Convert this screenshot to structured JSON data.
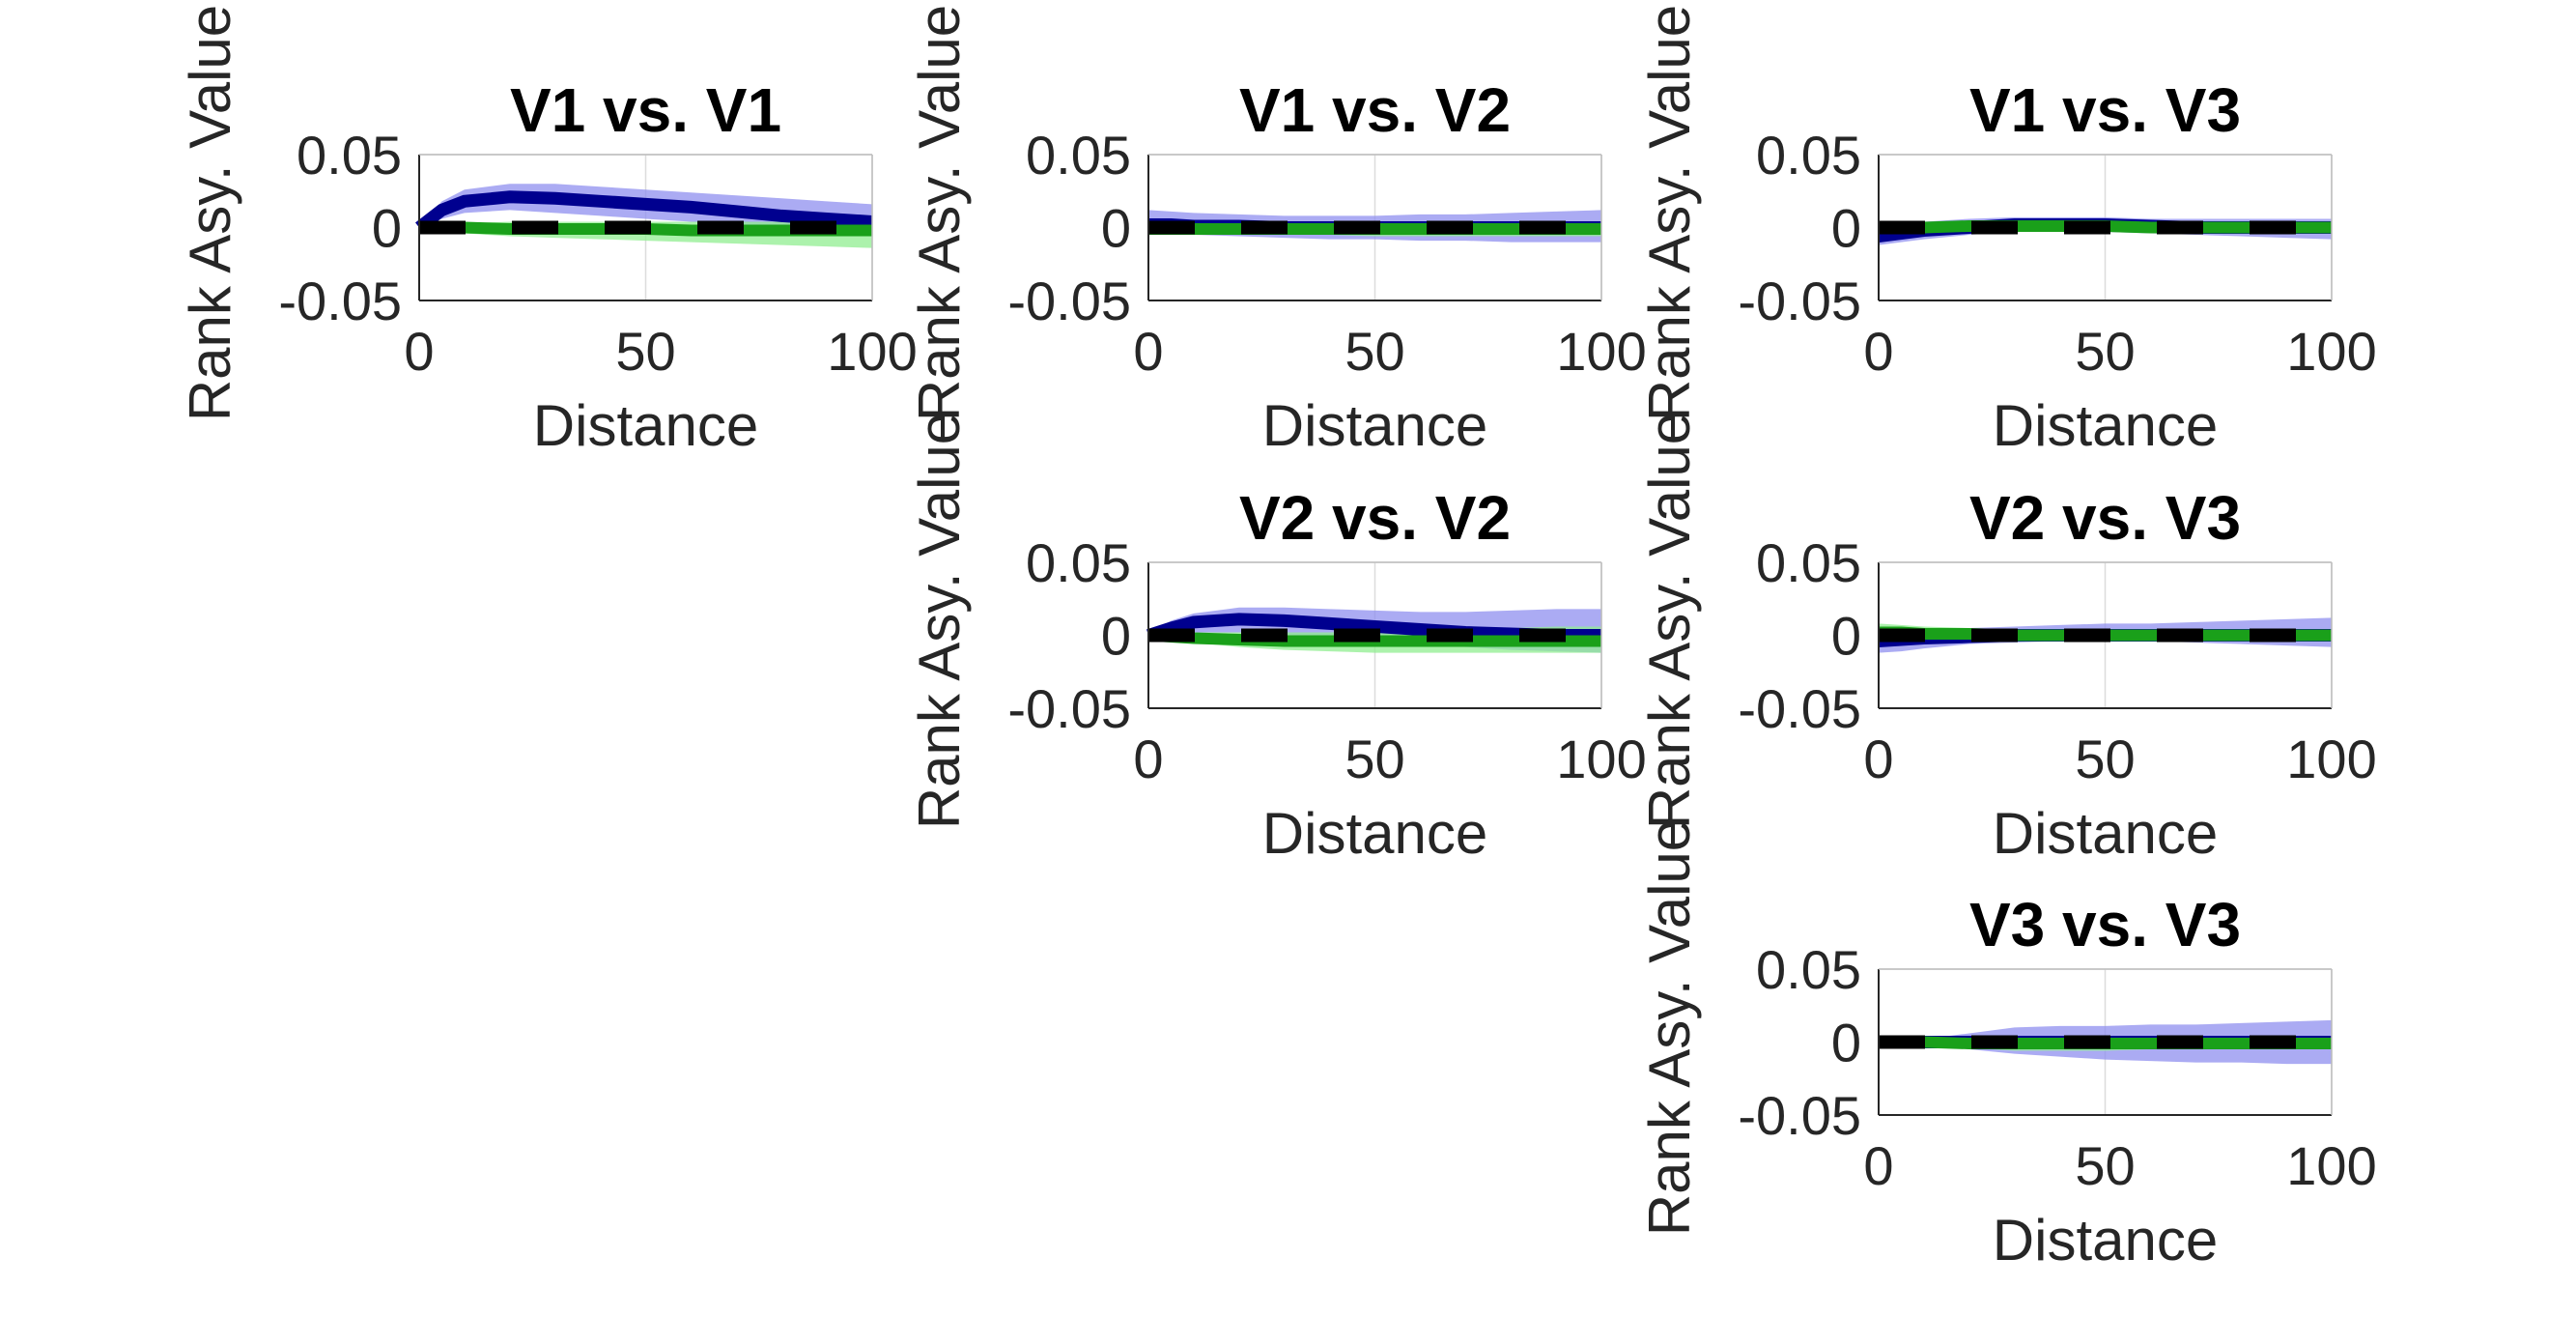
{
  "colors": {
    "blue_line": "#00008f",
    "blue_band": "#8f8fef",
    "green_line": "#1aa01a",
    "green_band": "#90ee90",
    "overlap_band": "#5f8fb7",
    "dashed": "#000000",
    "axes": "#262626",
    "grid": "#dcdcdc"
  },
  "chart_data": [
    {
      "type": "line",
      "title": "V1 vs. V1",
      "xlabel": "Distance",
      "ylabel": "Rank Asy. Value",
      "xlim": [
        0,
        100
      ],
      "ylim": [
        -0.05,
        0.05
      ],
      "xticks": [
        "0",
        "50",
        "100"
      ],
      "yticks": [
        "0.05",
        "0",
        "-0.05"
      ],
      "grid": true,
      "x": [
        0,
        5,
        10,
        20,
        30,
        40,
        50,
        60,
        70,
        80,
        90,
        100
      ],
      "series": [
        {
          "color": "blue",
          "values": [
            0.0,
            0.012,
            0.018,
            0.021,
            0.02,
            0.018,
            0.016,
            0.014,
            0.011,
            0.008,
            0.006,
            0.004
          ],
          "band_low": [
            0.0,
            0.006,
            0.01,
            0.012,
            0.01,
            0.008,
            0.006,
            0.004,
            0.002,
            0.0,
            -0.002,
            -0.004
          ],
          "band_high": [
            0.0,
            0.018,
            0.026,
            0.03,
            0.03,
            0.028,
            0.026,
            0.024,
            0.022,
            0.02,
            0.018,
            0.016
          ]
        },
        {
          "color": "green",
          "values": [
            0.0,
            0.0,
            0.0,
            -0.001,
            -0.001,
            -0.001,
            -0.001,
            -0.002,
            -0.002,
            -0.002,
            -0.002,
            -0.002
          ],
          "band_low": [
            0.0,
            -0.002,
            -0.004,
            -0.006,
            -0.007,
            -0.008,
            -0.009,
            -0.01,
            -0.011,
            -0.012,
            -0.013,
            -0.014
          ],
          "band_high": [
            0.0,
            0.002,
            0.003,
            0.004,
            0.004,
            0.004,
            0.004,
            0.004,
            0.004,
            0.004,
            0.004,
            0.004
          ]
        },
        {
          "color": "dashed",
          "values": [
            0,
            0,
            0,
            0,
            0,
            0,
            0,
            0,
            0,
            0,
            0,
            0
          ]
        }
      ]
    },
    {
      "type": "line",
      "title": "V1 vs. V2",
      "xlabel": "Distance",
      "ylabel": "Rank Asy. Value",
      "xlim": [
        0,
        100
      ],
      "ylim": [
        -0.05,
        0.05
      ],
      "xticks": [
        "0",
        "50",
        "100"
      ],
      "yticks": [
        "0.05",
        "0",
        "-0.05"
      ],
      "grid": true,
      "x": [
        0,
        5,
        10,
        20,
        30,
        40,
        50,
        60,
        70,
        80,
        90,
        100
      ],
      "series": [
        {
          "color": "blue",
          "values": [
            0.002,
            0.002,
            0.001,
            0.001,
            0.0,
            0.0,
            0.0,
            0.0,
            0.0,
            0.0,
            0.0,
            0.0
          ],
          "band_low": [
            -0.004,
            -0.005,
            -0.005,
            -0.006,
            -0.007,
            -0.008,
            -0.008,
            -0.009,
            -0.009,
            -0.01,
            -0.01,
            -0.01
          ],
          "band_high": [
            0.012,
            0.011,
            0.01,
            0.009,
            0.008,
            0.008,
            0.008,
            0.009,
            0.009,
            0.01,
            0.011,
            0.012
          ]
        },
        {
          "color": "green",
          "values": [
            -0.001,
            -0.001,
            -0.001,
            -0.001,
            -0.001,
            -0.001,
            -0.001,
            -0.001,
            -0.001,
            -0.001,
            -0.001,
            -0.001
          ],
          "band_low": [
            -0.004,
            -0.004,
            -0.005,
            -0.005,
            -0.005,
            -0.005,
            -0.006,
            -0.006,
            -0.006,
            -0.006,
            -0.006,
            -0.006
          ],
          "band_high": [
            0.002,
            0.002,
            0.003,
            0.003,
            0.003,
            0.003,
            0.003,
            0.003,
            0.003,
            0.003,
            0.003,
            0.003
          ]
        },
        {
          "color": "dashed",
          "values": [
            0,
            0,
            0,
            0,
            0,
            0,
            0,
            0,
            0,
            0,
            0,
            0
          ]
        }
      ]
    },
    {
      "type": "line",
      "title": "V1 vs. V3",
      "xlabel": "Distance",
      "ylabel": "Rank Asy. Value",
      "xlim": [
        0,
        100
      ],
      "ylim": [
        -0.05,
        0.05
      ],
      "xticks": [
        "0",
        "50",
        "100"
      ],
      "yticks": [
        "0.05",
        "0",
        "-0.05"
      ],
      "grid": true,
      "x": [
        0,
        5,
        10,
        20,
        30,
        40,
        50,
        60,
        70,
        80,
        90,
        100
      ],
      "series": [
        {
          "color": "blue",
          "values": [
            -0.006,
            -0.004,
            -0.002,
            0.0,
            0.002,
            0.002,
            0.002,
            0.001,
            0.0,
            0.0,
            0.0,
            0.0
          ],
          "band_low": [
            -0.012,
            -0.01,
            -0.008,
            -0.005,
            -0.003,
            -0.003,
            -0.003,
            -0.004,
            -0.005,
            -0.006,
            -0.007,
            -0.008
          ],
          "band_high": [
            0.0,
            0.002,
            0.004,
            0.006,
            0.007,
            0.007,
            0.007,
            0.006,
            0.006,
            0.006,
            0.006,
            0.006
          ]
        },
        {
          "color": "green",
          "values": [
            0.0,
            0.0,
            0.0,
            0.001,
            0.001,
            0.001,
            0.001,
            0.0,
            0.0,
            0.0,
            0.0,
            0.0
          ],
          "band_low": [
            -0.004,
            -0.004,
            -0.003,
            -0.002,
            -0.002,
            -0.002,
            -0.002,
            -0.002,
            -0.003,
            -0.003,
            -0.003,
            -0.003
          ],
          "band_high": [
            0.004,
            0.004,
            0.004,
            0.004,
            0.004,
            0.004,
            0.004,
            0.003,
            0.003,
            0.003,
            0.003,
            0.003
          ]
        },
        {
          "color": "dashed",
          "values": [
            0,
            0,
            0,
            0,
            0,
            0,
            0,
            0,
            0,
            0,
            0,
            0
          ]
        }
      ]
    },
    {
      "type": "line",
      "title": "V2 vs. V2",
      "xlabel": "Distance",
      "ylabel": "Rank Asy. Value",
      "xlim": [
        0,
        100
      ],
      "ylim": [
        -0.05,
        0.05
      ],
      "xticks": [
        "0",
        "50",
        "100"
      ],
      "yticks": [
        "0.05",
        "0",
        "-0.05"
      ],
      "grid": true,
      "x": [
        0,
        5,
        10,
        20,
        30,
        40,
        50,
        60,
        70,
        80,
        90,
        100
      ],
      "series": [
        {
          "color": "blue",
          "values": [
            0.0,
            0.005,
            0.009,
            0.011,
            0.01,
            0.008,
            0.006,
            0.004,
            0.002,
            0.001,
            0.0,
            0.0
          ],
          "band_low": [
            0.0,
            0.001,
            0.002,
            0.002,
            0.0,
            -0.002,
            -0.004,
            -0.006,
            -0.008,
            -0.01,
            -0.011,
            -0.012
          ],
          "band_high": [
            0.0,
            0.01,
            0.015,
            0.019,
            0.019,
            0.018,
            0.017,
            0.016,
            0.016,
            0.017,
            0.018,
            0.018
          ]
        },
        {
          "color": "green",
          "values": [
            0.0,
            -0.001,
            -0.002,
            -0.003,
            -0.004,
            -0.004,
            -0.004,
            -0.004,
            -0.004,
            -0.004,
            -0.004,
            -0.004
          ],
          "band_low": [
            0.0,
            -0.003,
            -0.005,
            -0.008,
            -0.01,
            -0.011,
            -0.012,
            -0.012,
            -0.012,
            -0.012,
            -0.012,
            -0.012
          ],
          "band_high": [
            0.0,
            0.001,
            0.002,
            0.002,
            0.002,
            0.002,
            0.003,
            0.003,
            0.004,
            0.005,
            0.006,
            0.006
          ]
        },
        {
          "color": "dashed",
          "values": [
            0,
            0,
            0,
            0,
            0,
            0,
            0,
            0,
            0,
            0,
            0,
            0
          ]
        }
      ]
    },
    {
      "type": "line",
      "title": "V2 vs. V3",
      "xlabel": "Distance",
      "ylabel": "Rank Asy. Value",
      "xlim": [
        0,
        100
      ],
      "ylim": [
        -0.05,
        0.05
      ],
      "xticks": [
        "0",
        "50",
        "100"
      ],
      "yticks": [
        "0.05",
        "0",
        "-0.05"
      ],
      "grid": true,
      "x": [
        0,
        5,
        10,
        20,
        30,
        40,
        50,
        60,
        70,
        80,
        90,
        100
      ],
      "series": [
        {
          "color": "blue",
          "values": [
            -0.004,
            -0.003,
            -0.002,
            -0.001,
            0.0,
            0.0,
            0.0,
            0.0,
            0.0,
            0.0,
            0.0,
            0.0
          ],
          "band_low": [
            -0.012,
            -0.011,
            -0.009,
            -0.006,
            -0.005,
            -0.004,
            -0.004,
            -0.004,
            -0.005,
            -0.006,
            -0.007,
            -0.008
          ],
          "band_high": [
            0.004,
            0.005,
            0.005,
            0.005,
            0.006,
            0.007,
            0.008,
            0.008,
            0.009,
            0.01,
            0.011,
            0.012
          ]
        },
        {
          "color": "green",
          "values": [
            0.002,
            0.002,
            0.001,
            0.001,
            0.0,
            0.0,
            0.0,
            0.0,
            0.0,
            0.0,
            0.0,
            0.0
          ],
          "band_low": [
            -0.002,
            -0.002,
            -0.002,
            -0.002,
            -0.003,
            -0.003,
            -0.003,
            -0.003,
            -0.003,
            -0.003,
            -0.003,
            -0.003
          ],
          "band_high": [
            0.008,
            0.007,
            0.006,
            0.005,
            0.004,
            0.004,
            0.003,
            0.003,
            0.003,
            0.003,
            0.003,
            0.003
          ]
        },
        {
          "color": "dashed",
          "values": [
            0,
            0,
            0,
            0,
            0,
            0,
            0,
            0,
            0,
            0,
            0,
            0
          ]
        }
      ]
    },
    {
      "type": "line",
      "title": "V3 vs. V3",
      "xlabel": "Distance",
      "ylabel": "Rank Asy. Value",
      "xlim": [
        0,
        100
      ],
      "ylim": [
        -0.05,
        0.05
      ],
      "xticks": [
        "0",
        "50",
        "100"
      ],
      "yticks": [
        "0.05",
        "0",
        "-0.05"
      ],
      "grid": true,
      "x": [
        0,
        5,
        10,
        20,
        30,
        40,
        50,
        60,
        70,
        80,
        90,
        100
      ],
      "series": [
        {
          "color": "blue",
          "values": [
            0.0,
            0.0,
            0.0,
            0.0,
            0.0,
            0.0,
            0.0,
            0.0,
            0.0,
            0.0,
            0.0,
            0.0
          ],
          "band_low": [
            0.0,
            0.0,
            -0.001,
            -0.005,
            -0.008,
            -0.01,
            -0.012,
            -0.013,
            -0.014,
            -0.014,
            -0.015,
            -0.015
          ],
          "band_high": [
            0.0,
            0.0,
            0.002,
            0.006,
            0.01,
            0.011,
            0.011,
            0.012,
            0.012,
            0.013,
            0.014,
            0.015
          ]
        },
        {
          "color": "green",
          "values": [
            0.0,
            0.0,
            0.0,
            -0.001,
            -0.001,
            -0.001,
            -0.001,
            -0.001,
            -0.001,
            -0.001,
            -0.001,
            -0.001
          ],
          "band_low": [
            0.0,
            0.0,
            -0.001,
            -0.004,
            -0.006,
            -0.006,
            -0.006,
            -0.005,
            -0.005,
            -0.005,
            -0.005,
            -0.005
          ],
          "band_high": [
            0.0,
            0.0,
            0.001,
            0.003,
            0.004,
            0.004,
            0.004,
            0.004,
            0.004,
            0.004,
            0.004,
            0.004
          ]
        },
        {
          "color": "dashed",
          "values": [
            0,
            0,
            0,
            0,
            0,
            0,
            0,
            0,
            0,
            0,
            0,
            0
          ]
        }
      ]
    }
  ]
}
